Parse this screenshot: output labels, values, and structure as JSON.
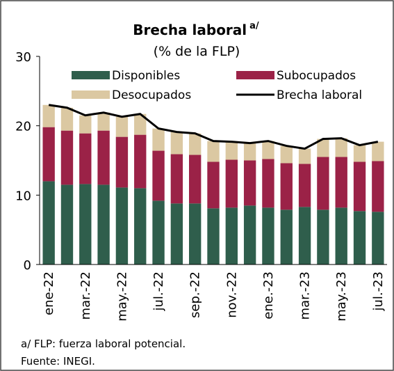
{
  "chart_data": {
    "type": "stacked_bar_line",
    "title": "Brecha laboral",
    "title_superscript": "a/",
    "subtitle": "(% de la FLP)",
    "categories": [
      "ene-22",
      null,
      "mar.-22",
      null,
      "may.-22",
      null,
      "jul.-22",
      null,
      "sep.-22",
      null,
      "nov.-22",
      null,
      "ene.-23",
      null,
      "mar.-23",
      null,
      "may.-23",
      null,
      "jul.-23"
    ],
    "series": [
      {
        "name": "Disponibles",
        "color": "#2f5e4c",
        "values": [
          12.0,
          11.5,
          11.6,
          11.5,
          11.1,
          11.0,
          9.2,
          8.8,
          8.8,
          8.1,
          8.2,
          8.5,
          8.2,
          7.9,
          8.3,
          7.9,
          8.2,
          7.7,
          7.6
        ]
      },
      {
        "name": "Subocupados",
        "color": "#9b2247",
        "values": [
          7.8,
          7.8,
          7.3,
          7.8,
          7.3,
          7.7,
          7.2,
          7.1,
          7.0,
          6.7,
          6.9,
          6.5,
          7.0,
          6.7,
          6.2,
          7.6,
          7.3,
          7.1,
          7.3
        ]
      },
      {
        "name": "Desocupados",
        "color": "#dbc8a2",
        "values": [
          3.2,
          3.3,
          2.6,
          2.6,
          2.9,
          3.0,
          3.2,
          3.2,
          3.1,
          3.0,
          2.6,
          2.5,
          2.6,
          2.5,
          2.2,
          2.6,
          2.7,
          2.4,
          2.8
        ]
      },
      {
        "name": "Brecha laboral",
        "color": "#000000",
        "type": "line",
        "values": [
          23.0,
          22.6,
          21.5,
          21.9,
          21.3,
          21.7,
          19.6,
          19.1,
          18.9,
          17.8,
          17.7,
          17.5,
          17.8,
          17.1,
          16.7,
          18.1,
          18.2,
          17.2,
          17.7
        ]
      }
    ],
    "ylim": [
      0,
      30
    ],
    "yticks": [
      0,
      10,
      20,
      30
    ],
    "notes": [
      "a/ FLP: fuerza laboral potencial.",
      "Fuente: INEGI."
    ]
  }
}
